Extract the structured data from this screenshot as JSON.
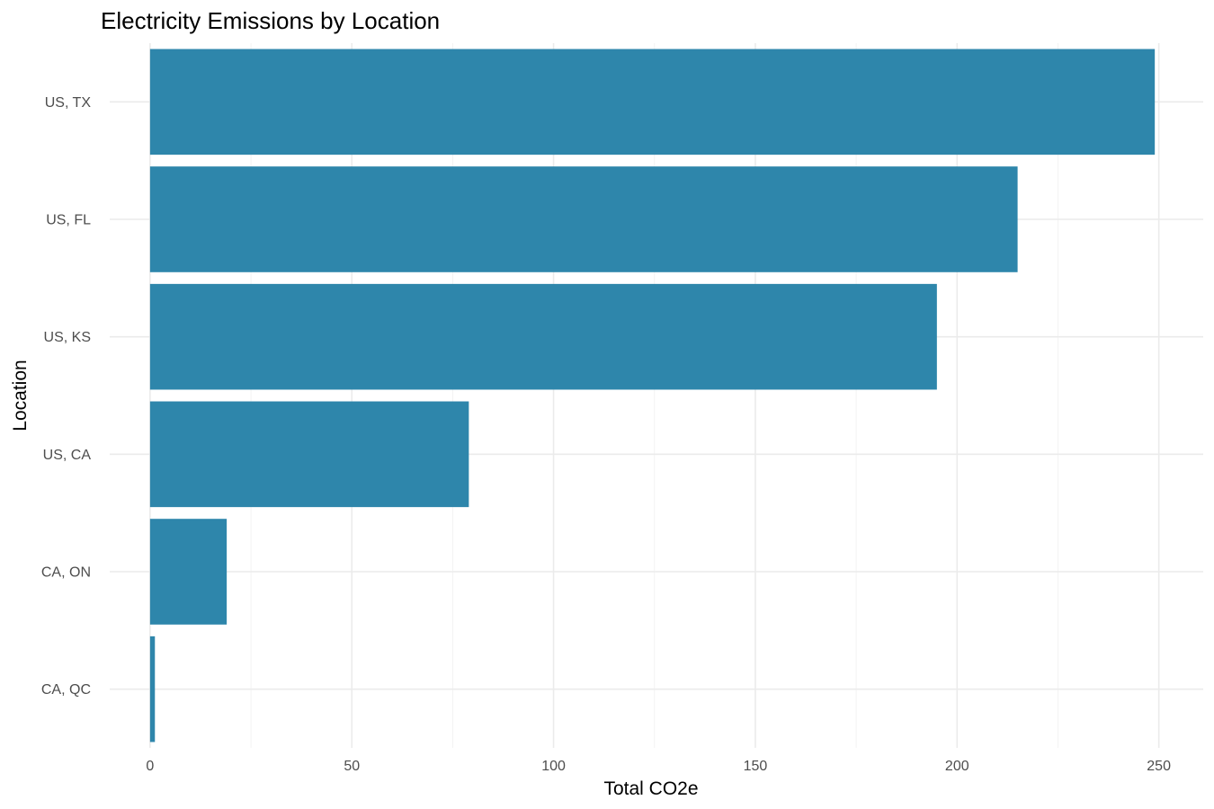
{
  "chart_data": {
    "type": "bar",
    "orientation": "horizontal",
    "title": "Electricity Emissions by Location",
    "xlabel": "Total CO2e",
    "ylabel": "Location",
    "categories": [
      "US, TX",
      "US, FL",
      "US, KS",
      "US, CA",
      "CA, ON",
      "CA, QC"
    ],
    "values": [
      249,
      215,
      195,
      79,
      19,
      1.2
    ],
    "xlim": [
      -10,
      261
    ],
    "xticks": [
      0,
      50,
      100,
      150,
      200,
      250
    ],
    "xtick_labels": [
      "0",
      "50",
      "100",
      "150",
      "200",
      "250"
    ],
    "grid": true,
    "legend": "none",
    "bar_color": "#2e86ab"
  }
}
